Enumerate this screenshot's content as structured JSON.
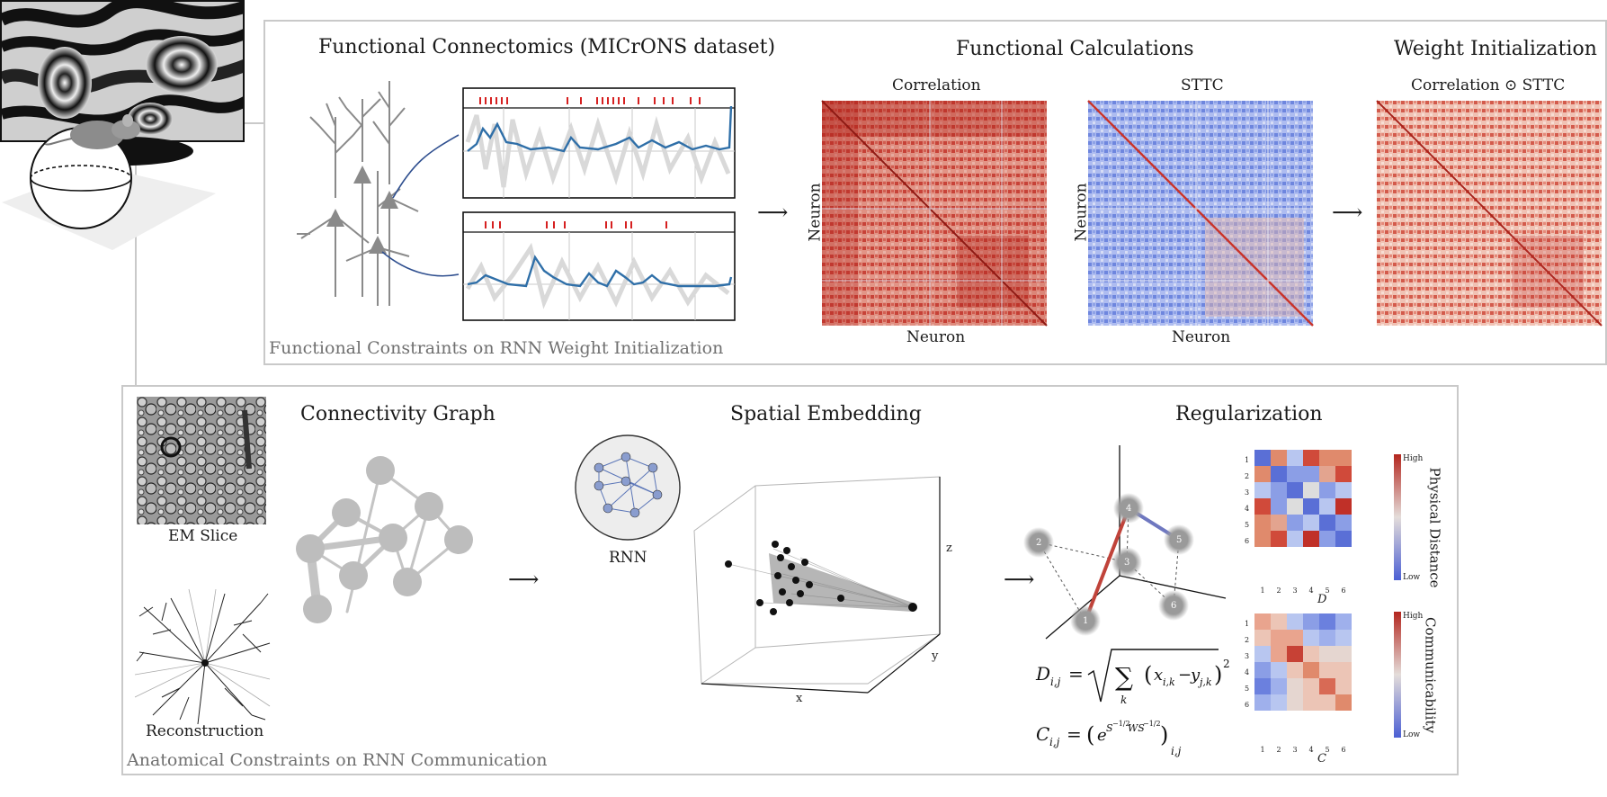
{
  "functional_panel": {
    "title_left": "Functional Connectomics (MICrONS dataset)",
    "title_mid": "Functional Calculations",
    "title_right": "Weight Initialization",
    "corr_label": "Correlation",
    "sttc_label": "STTC",
    "weight_label": "Correlation ⊙ STTC",
    "neuron_axis": "Neuron",
    "footer": "Functional Constraints on RNN Weight Initialization"
  },
  "anatomical_panel": {
    "em_label": "EM Slice",
    "recon_label": "Reconstruction",
    "graph_title": "Connectivity Graph",
    "embed_title": "Spatial Embedding",
    "rnn_label": "RNN",
    "reg_title": "Regularization",
    "axis_x": "x",
    "axis_y": "y",
    "axis_z": "z",
    "node_labels": [
      "1",
      "2",
      "3",
      "4",
      "5",
      "6"
    ],
    "matrix_ticks": [
      "1",
      "2",
      "3",
      "4",
      "5",
      "6"
    ],
    "matrix_d_caption": "D",
    "matrix_c_caption": "C",
    "cbar_high": "High",
    "cbar_low": "Low",
    "d_cbar_title": "Physical Distance",
    "c_cbar_title": "Communicability",
    "footer": "Anatomical Constraints on RNN Communication"
  },
  "colors": {
    "trace_blue": "#2f6fa8",
    "spike_red": "#d62020",
    "panel_border": "#c9c9c9",
    "heat_red": "#c0342e",
    "heat_blue": "#5a6fd6"
  }
}
